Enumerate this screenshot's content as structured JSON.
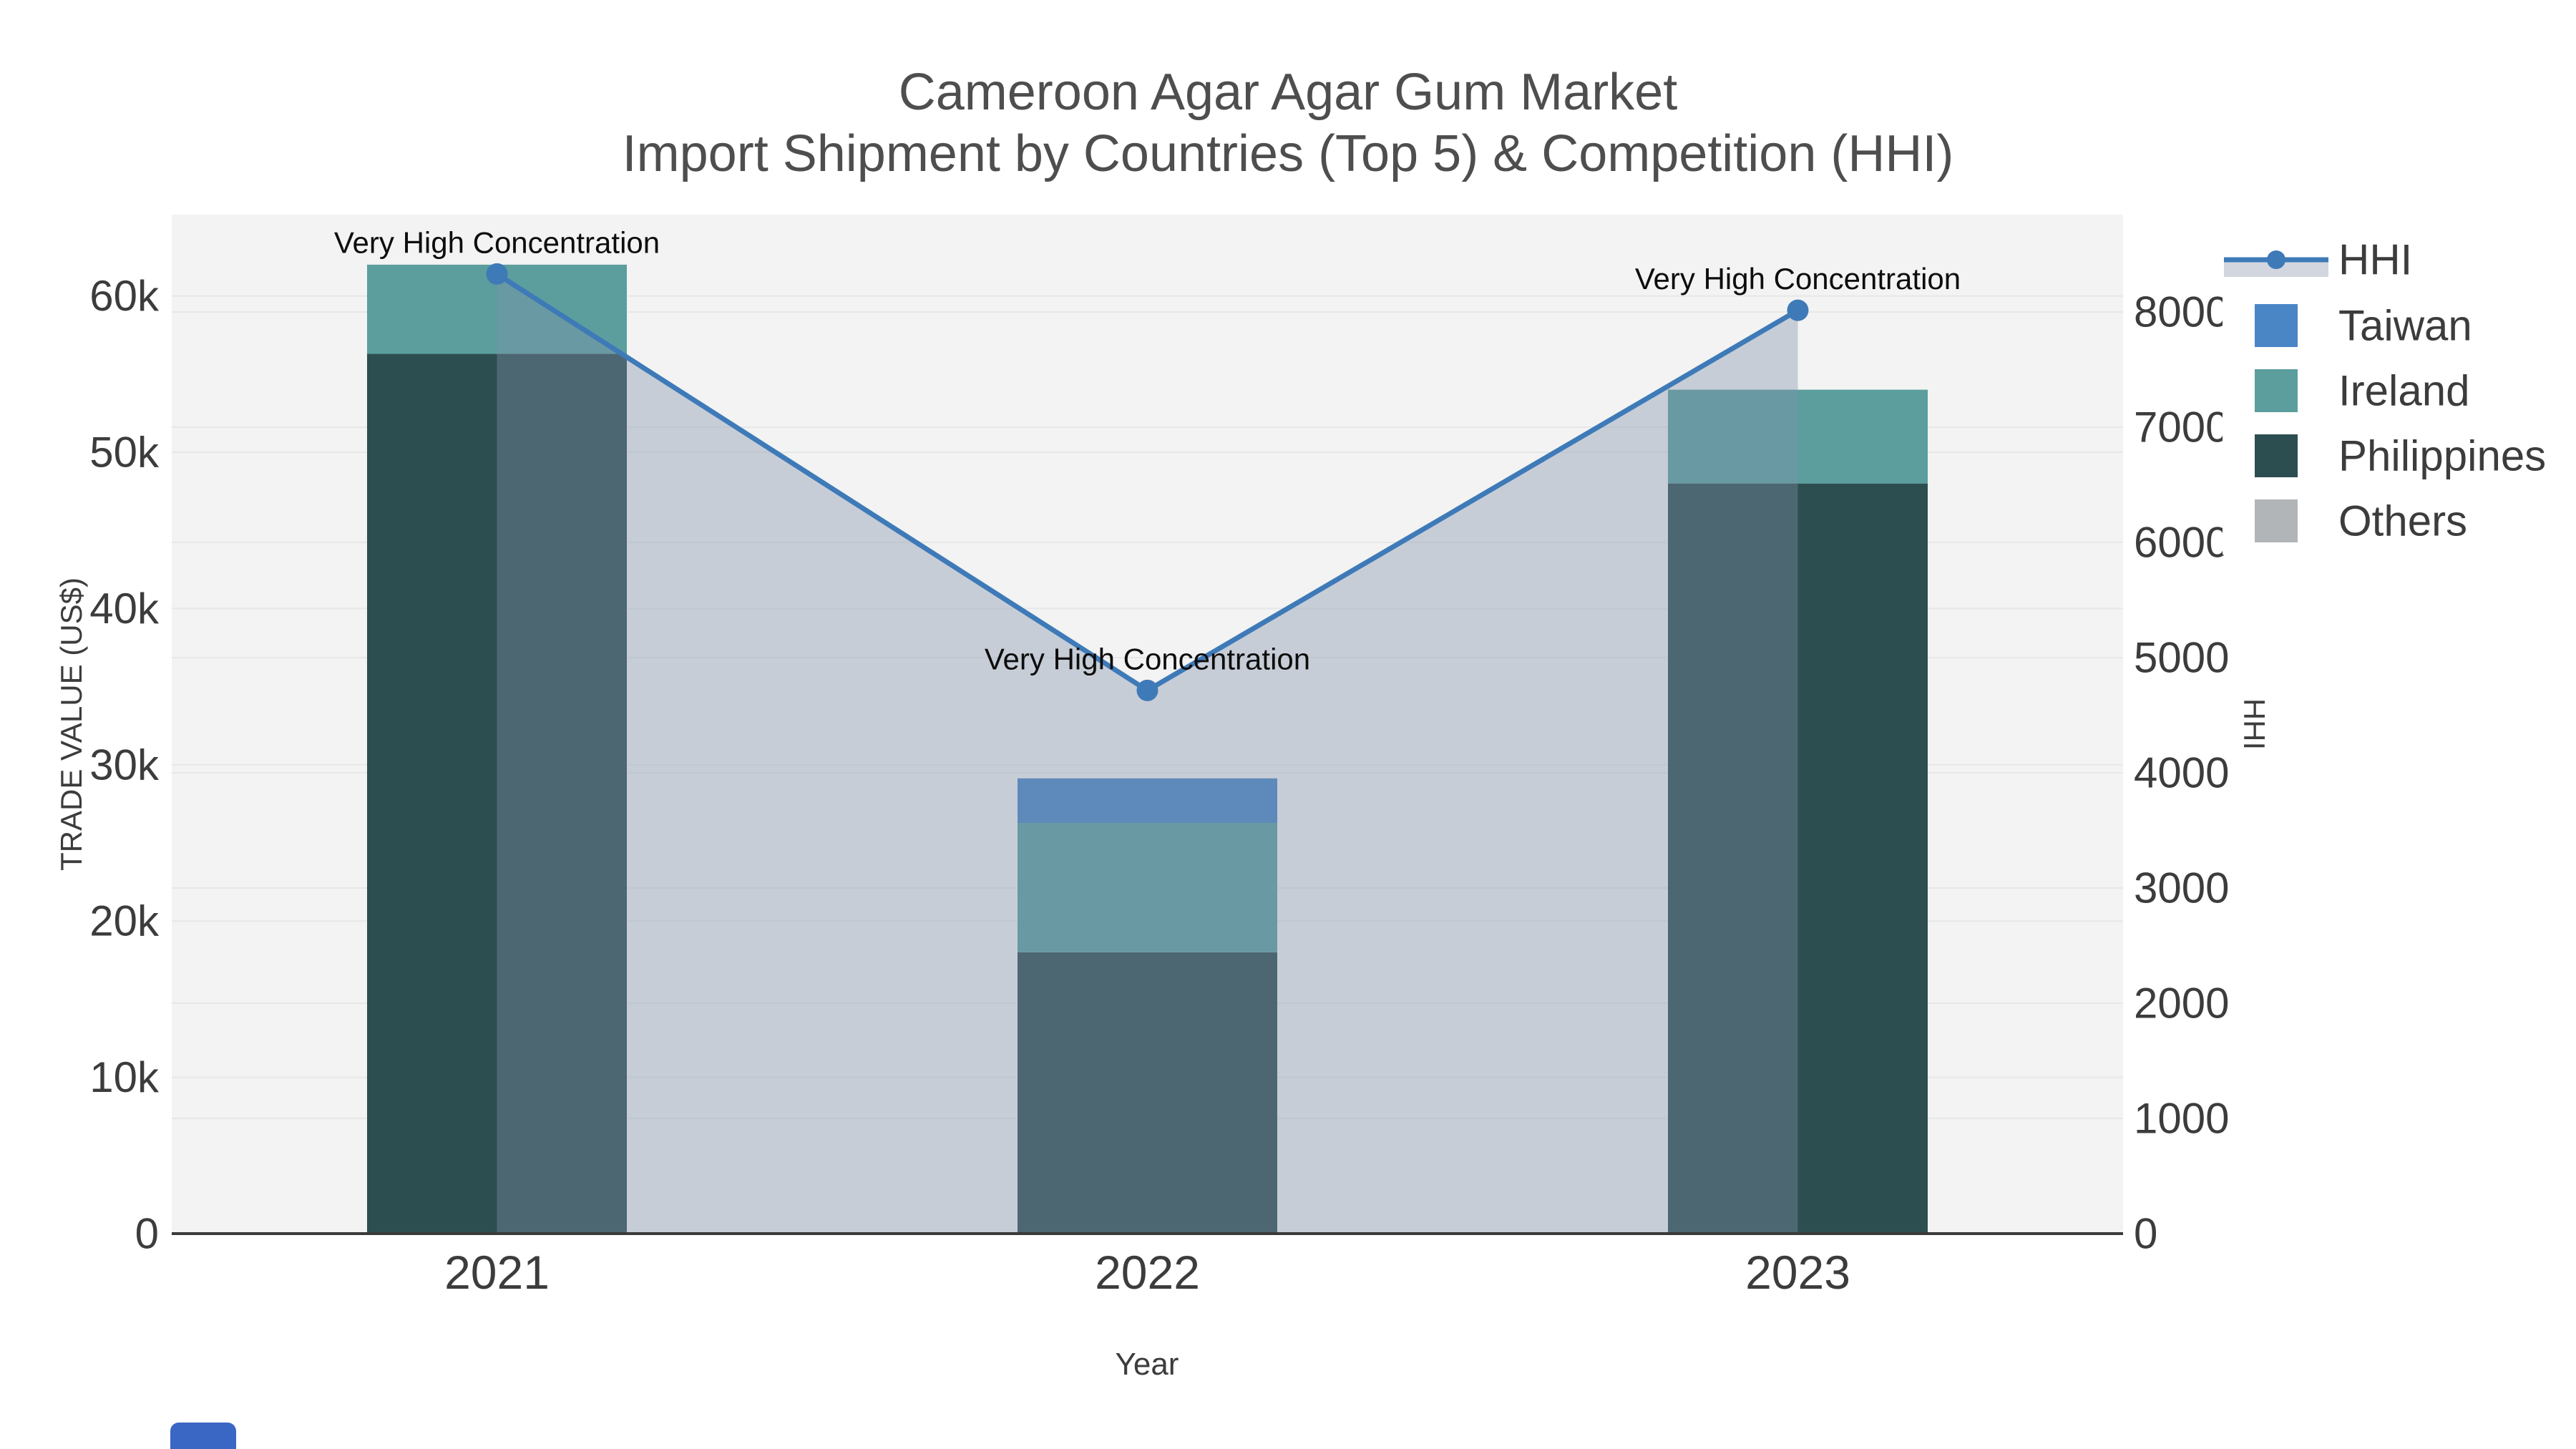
{
  "page": {
    "background": "#ffffff",
    "plot_background": "#f2f3f2",
    "grid_color": "#e6e8e7",
    "axis_line_color": "#3a3a3a",
    "tick_text_color": "#3c3c3c",
    "annotation_color": "#0d0d0d"
  },
  "title": {
    "line1": "Cameroon Agar Agar Gum Market",
    "line2": "Import Shipment by Countries (Top 5) & Competition (HHI)"
  },
  "chart_data": {
    "type": "combo_stacked_bar_line",
    "title": "Cameroon Agar Agar Gum Market Import Shipment by Countries (Top 5) & Competition (HHI)",
    "categories": [
      "2021",
      "2022",
      "2023"
    ],
    "bar_series": [
      {
        "name": "Philippines",
        "color": "#2d4e50",
        "values": [
          56300,
          18000,
          48000
        ]
      },
      {
        "name": "Ireland",
        "color": "#5b9e9d",
        "values": [
          5700,
          8280,
          6000
        ]
      },
      {
        "name": "Taiwan",
        "color": "#4a85c6",
        "values": [
          0,
          2850,
          0
        ]
      },
      {
        "name": "Others",
        "color": "#b2b5b8",
        "values": [
          0,
          0,
          0
        ]
      }
    ],
    "line_series": {
      "name": "HHI",
      "axis": "right",
      "color": "#3e7ab8",
      "fill_color": "rgba(130,145,170,0.38)",
      "marker_radius": 15,
      "values": [
        8330,
        4715,
        8015
      ]
    },
    "annotations": [
      {
        "category": "2021",
        "text": "Very High Concentration"
      },
      {
        "category": "2022",
        "text": "Very High Concentration"
      },
      {
        "category": "2023",
        "text": "Very High Concentration"
      }
    ],
    "x_axis": {
      "title": "Year",
      "tick_labels": [
        "2021",
        "2022",
        "2023"
      ]
    },
    "y_axis_left": {
      "title": "TRADE VALUE (US$)",
      "tick_labels": [
        "0",
        "10k",
        "20k",
        "30k",
        "40k",
        "50k",
        "60k"
      ],
      "tick_values": [
        0,
        10000,
        20000,
        30000,
        40000,
        50000,
        60000
      ],
      "range": [
        0,
        65200
      ]
    },
    "y_axis_right": {
      "title": "HHI",
      "tick_labels": [
        "0",
        "1000",
        "2000",
        "3000",
        "4000",
        "5000",
        "6000",
        "7000",
        "8000"
      ],
      "tick_values": [
        0,
        1000,
        2000,
        3000,
        4000,
        5000,
        6000,
        7000,
        8000
      ],
      "range": [
        0,
        8845
      ]
    },
    "legend": {
      "position": "top-right",
      "entries": [
        {
          "label": "HHI",
          "type": "line-marker",
          "color": "#3e7ab8",
          "band_color": "#d2d6de"
        },
        {
          "label": "Taiwan",
          "type": "square",
          "color": "#4a85c6"
        },
        {
          "label": "Ireland",
          "type": "square",
          "color": "#5b9e9d"
        },
        {
          "label": "Philippines",
          "type": "square",
          "color": "#2d4e50"
        },
        {
          "label": "Others",
          "type": "square",
          "color": "#b2b5b8"
        }
      ]
    },
    "logo_badge_color": "#3a66c4"
  }
}
